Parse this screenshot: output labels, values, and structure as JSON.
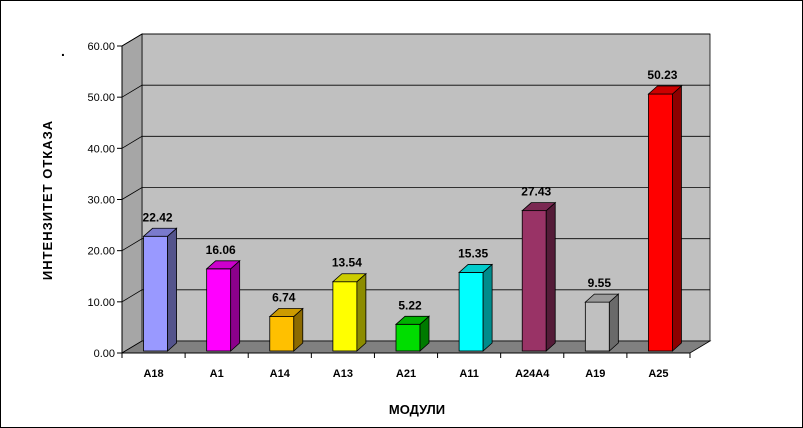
{
  "chart_data": {
    "type": "bar",
    "title": "",
    "xlabel": "МОДУЛИ",
    "ylabel": "ИНТЕНЗИТЕТ ОТКАЗА",
    "ylim": [
      0,
      60
    ],
    "yticks": [
      "0.00",
      "10.00",
      "20.00",
      "30.00",
      "40.00",
      "50.00",
      "60.00"
    ],
    "grid": true,
    "legend": "none",
    "categories": [
      "A18",
      "A1",
      "A14",
      "A13",
      "A21",
      "A11",
      "A24A4",
      "A19",
      "A25"
    ],
    "values": [
      22.42,
      16.06,
      6.74,
      13.54,
      5.22,
      15.35,
      27.43,
      9.55,
      50.23
    ],
    "value_labels": [
      "22.42",
      "16.06",
      "6.74",
      "13.54",
      "5.22",
      "15.35",
      "27.43",
      "9.55",
      "50.23"
    ],
    "colors": [
      "#9999ff",
      "#ff00ff",
      "#ffc000",
      "#ffff00",
      "#00dd00",
      "#00ffff",
      "#993366",
      "#c0c0c0",
      "#ff0000"
    ],
    "wall_color": "#c0c0c0",
    "floor_color": "#808080"
  },
  "stray_mark": "."
}
